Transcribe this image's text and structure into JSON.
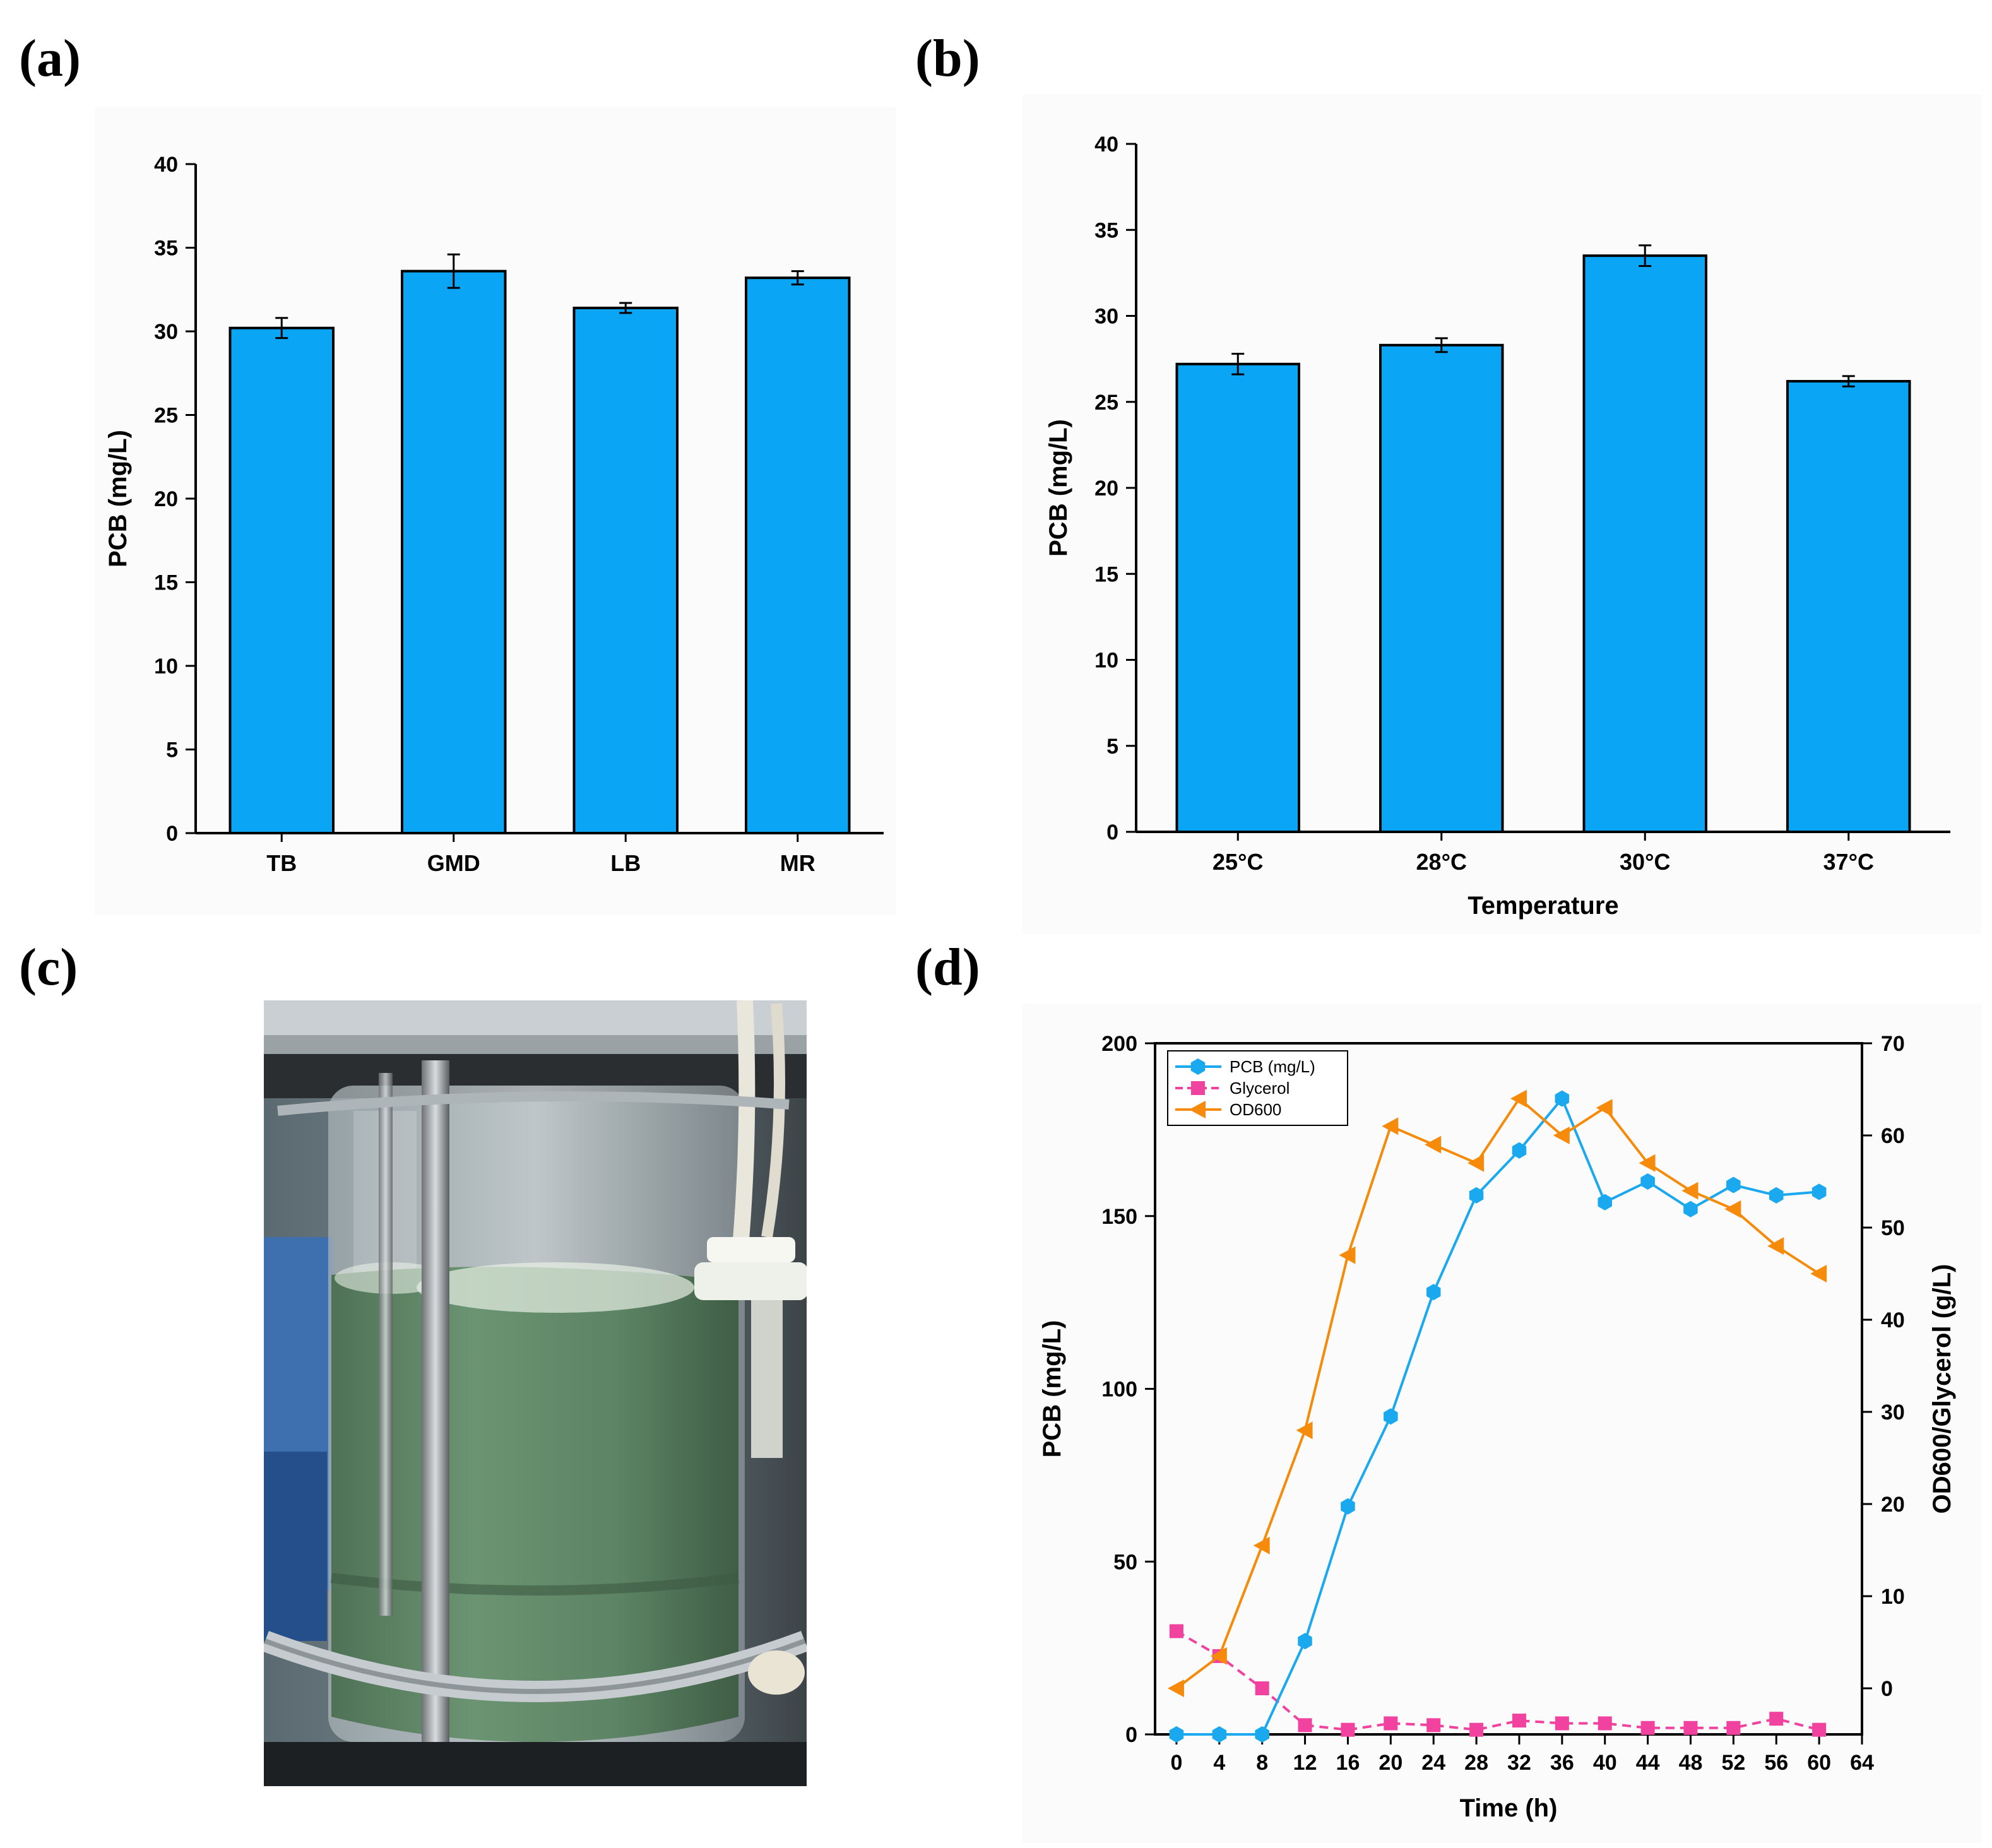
{
  "panel_labels": [
    "(a)",
    "(b)",
    "(c)",
    "(d)"
  ],
  "chart_data": [
    {
      "panel": "(a)",
      "type": "bar",
      "categories": [
        "TB",
        "GMD",
        "LB",
        "MR"
      ],
      "values": [
        30.2,
        33.6,
        31.4,
        33.2
      ],
      "errors": [
        0.6,
        1.0,
        0.3,
        0.4
      ],
      "ylabel": "PCB (mg/L)",
      "xlabel": "",
      "ylim": [
        0,
        40
      ],
      "yticks": [
        0,
        5,
        10,
        15,
        20,
        25,
        30,
        35,
        40
      ],
      "bar_color": "#0aa6f5"
    },
    {
      "panel": "(b)",
      "type": "bar",
      "categories": [
        "25°C",
        "28°C",
        "30°C",
        "37°C"
      ],
      "values": [
        27.2,
        28.3,
        33.5,
        26.2
      ],
      "errors": [
        0.6,
        0.4,
        0.6,
        0.3
      ],
      "ylabel": "PCB (mg/L)",
      "xlabel": "Temperature",
      "ylim": [
        0,
        40
      ],
      "yticks": [
        0,
        5,
        10,
        15,
        20,
        25,
        30,
        35,
        40
      ],
      "bar_color": "#0aa6f5"
    },
    {
      "panel": "(d)",
      "type": "line",
      "xlabel": "Time (h)",
      "ylabel": "PCB (mg/L)",
      "y2label": "OD600/Glycerol (g/L)",
      "xlim": [
        -2,
        64
      ],
      "ylim": [
        0,
        200
      ],
      "y2lim": [
        -5,
        70
      ],
      "xticks": [
        0,
        4,
        8,
        12,
        16,
        20,
        24,
        28,
        32,
        36,
        40,
        44,
        48,
        52,
        56,
        60,
        64
      ],
      "yticks": [
        0,
        50,
        100,
        150,
        200
      ],
      "y2ticks": [
        0,
        10,
        20,
        30,
        40,
        50,
        60,
        70
      ],
      "series": [
        {
          "name": "PCB (mg/L)",
          "axis": "left",
          "marker": "hexagon",
          "style": "solid",
          "color": "#1aa8ee",
          "x": [
            0,
            4,
            8,
            12,
            16,
            20,
            24,
            28,
            32,
            36,
            40,
            44,
            48,
            52,
            56,
            60
          ],
          "y": [
            0,
            0,
            0,
            27,
            66,
            92,
            128,
            156,
            169,
            184,
            154,
            160,
            152,
            159,
            156,
            157
          ]
        },
        {
          "name": "Glycerol",
          "axis": "right",
          "marker": "square",
          "style": "dashed",
          "color": "#f0429e",
          "x": [
            0,
            4,
            8,
            12,
            16,
            20,
            24,
            28,
            32,
            36,
            40,
            44,
            48,
            52,
            56,
            60
          ],
          "y": [
            6.2,
            3.5,
            0.0,
            -4.0,
            -4.5,
            -3.8,
            -4.0,
            -4.5,
            -3.5,
            -3.8,
            -3.8,
            -4.3,
            -4.3,
            -4.3,
            -3.3,
            -4.5
          ]
        },
        {
          "name": "OD600",
          "axis": "right",
          "marker": "triangle-left",
          "style": "solid",
          "color": "#f58a0b",
          "x": [
            0,
            4,
            8,
            12,
            16,
            20,
            24,
            28,
            32,
            36,
            40,
            44,
            48,
            52,
            56,
            60
          ],
          "y": [
            0,
            3.5,
            15.5,
            28,
            47,
            61,
            59,
            57,
            64,
            60,
            63,
            57,
            54,
            52,
            48,
            45
          ]
        }
      ]
    }
  ],
  "photo": {
    "caption_label": "(c)",
    "subject": "fermenter"
  }
}
